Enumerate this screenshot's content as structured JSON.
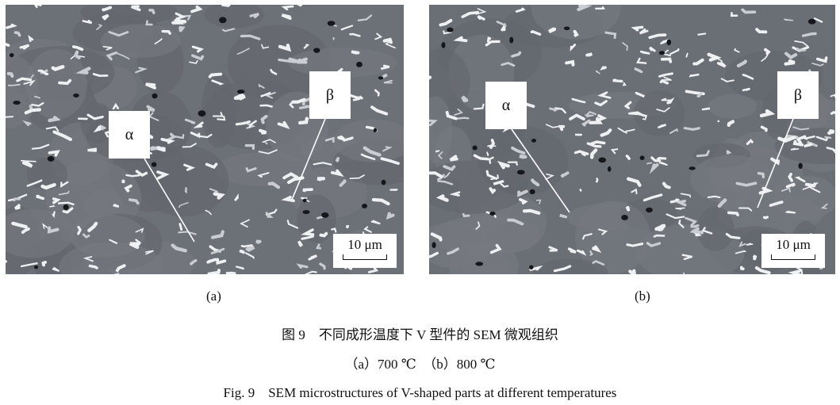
{
  "panels": [
    {
      "id": "a",
      "label": "(a)",
      "phase_labels": [
        "α",
        "β"
      ],
      "scale_bar": "10 μm"
    },
    {
      "id": "b",
      "label": "(b)",
      "phase_labels": [
        "α",
        "β"
      ],
      "scale_bar": "10 μm"
    }
  ],
  "caption": {
    "cn": "图 9　不同成形温度下 V 型件的 SEM 微观组织",
    "sub": "（a）700 ℃　（b）800 ℃",
    "en": "Fig. 9　SEM microstructures of V-shaped parts at different temperatures"
  }
}
